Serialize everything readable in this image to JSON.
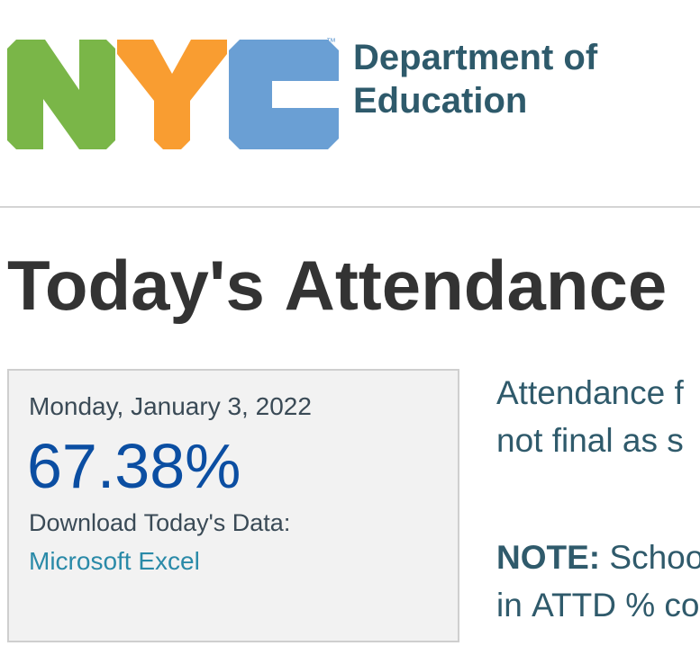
{
  "header": {
    "trademark": "™",
    "department_line1": "Department of",
    "department_line2": "Education"
  },
  "title": "Today's Attendance",
  "card": {
    "date": "Monday, January 3, 2022",
    "percentage": "67.38%",
    "download_label": "Download Today's Data:",
    "download_link": "Microsoft Excel"
  },
  "side_text": {
    "line1": "Attendance f",
    "line2": "not final as s",
    "note_label": "NOTE:",
    "note_line1": " Schoo",
    "note_line2": "in ATTD % co"
  }
}
